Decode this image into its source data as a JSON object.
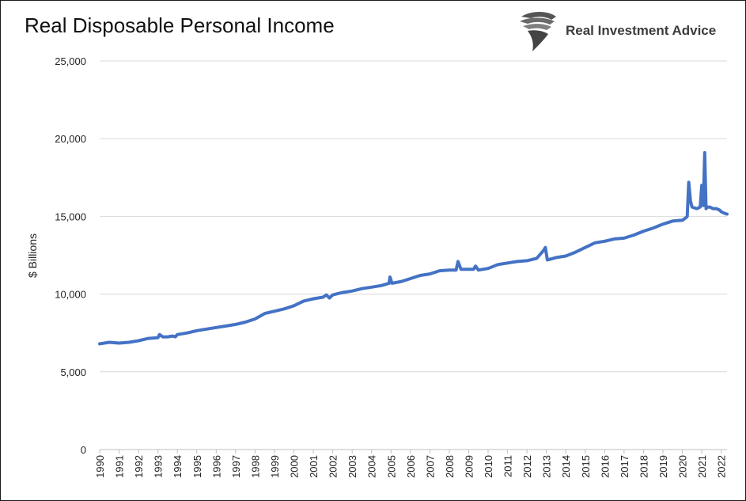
{
  "title": "Real Disposable Personal Income",
  "logo": {
    "text": "Real Investment Advice",
    "icon": "eagle-head-icon"
  },
  "colors": {
    "line": "#4472C4",
    "grid": "#d9d9d9",
    "axis": "#bfbfbf"
  },
  "chart_data": {
    "type": "line",
    "title": "Real Disposable Personal Income",
    "ylabel": "$ Billions",
    "xlabel": "",
    "ylim": [
      0,
      25000
    ],
    "xlim": [
      1990,
      2022.3
    ],
    "yticks": [
      0,
      5000,
      10000,
      15000,
      20000,
      25000
    ],
    "ytick_labels": [
      "0",
      "5,000",
      "10,000",
      "15,000",
      "20,000",
      "25,000"
    ],
    "xtick_labels": [
      "1990",
      "1991",
      "1992",
      "1993",
      "1994",
      "1995",
      "1996",
      "1997",
      "1998",
      "1999",
      "2000",
      "2001",
      "2002",
      "2003",
      "2004",
      "2005",
      "2006",
      "2007",
      "2008",
      "2009",
      "2010",
      "2011",
      "2012",
      "2013",
      "2014",
      "2015",
      "2016",
      "2017",
      "2018",
      "2019",
      "2020",
      "2021",
      "2022"
    ],
    "grid": "horizontal",
    "legend": "none",
    "series": [
      {
        "color": "#4472C4",
        "x": [
          1990.0,
          1990.5,
          1991.0,
          1991.5,
          1992.0,
          1992.5,
          1993.0,
          1993.08,
          1993.25,
          1993.5,
          1993.75,
          1993.9,
          1994.0,
          1994.5,
          1995.0,
          1995.5,
          1996.0,
          1996.5,
          1997.0,
          1997.5,
          1998.0,
          1998.5,
          1999.0,
          1999.5,
          2000.0,
          2000.5,
          2001.0,
          2001.5,
          2001.67,
          2001.83,
          2002.0,
          2002.5,
          2003.0,
          2003.5,
          2004.0,
          2004.5,
          2004.9,
          2004.95,
          2005.05,
          2005.5,
          2006.0,
          2006.5,
          2007.0,
          2007.5,
          2008.0,
          2008.35,
          2008.45,
          2008.6,
          2009.0,
          2009.25,
          2009.35,
          2009.5,
          2010.0,
          2010.5,
          2011.0,
          2011.5,
          2012.0,
          2012.5,
          2012.85,
          2012.95,
          2013.05,
          2013.5,
          2014.0,
          2014.5,
          2015.0,
          2015.5,
          2016.0,
          2016.5,
          2017.0,
          2017.5,
          2018.0,
          2018.5,
          2019.0,
          2019.5,
          2020.0,
          2020.17,
          2020.25,
          2020.33,
          2020.42,
          2020.5,
          2020.75,
          2020.92,
          2021.0,
          2021.08,
          2021.15,
          2021.22,
          2021.3,
          2021.42,
          2021.58,
          2021.75,
          2021.92,
          2022.0,
          2022.17,
          2022.3
        ],
        "y": [
          6800,
          6900,
          6850,
          6900,
          7000,
          7150,
          7200,
          7400,
          7250,
          7250,
          7300,
          7250,
          7400,
          7500,
          7650,
          7750,
          7850,
          7950,
          8050,
          8200,
          8400,
          8750,
          8900,
          9050,
          9250,
          9550,
          9700,
          9800,
          9950,
          9750,
          9950,
          10100,
          10200,
          10350,
          10450,
          10550,
          10700,
          11100,
          10700,
          10800,
          11000,
          11200,
          11300,
          11500,
          11550,
          11550,
          12100,
          11600,
          11600,
          11600,
          11800,
          11550,
          11650,
          11900,
          12000,
          12100,
          12150,
          12300,
          12800,
          13000,
          12200,
          12350,
          12450,
          12700,
          13000,
          13300,
          13400,
          13550,
          13600,
          13800,
          14050,
          14250,
          14500,
          14700,
          14750,
          14900,
          15000,
          17200,
          16000,
          15600,
          15500,
          15600,
          17000,
          15700,
          19100,
          15500,
          15600,
          15600,
          15500,
          15500,
          15400,
          15300,
          15200,
          15150
        ]
      }
    ]
  }
}
